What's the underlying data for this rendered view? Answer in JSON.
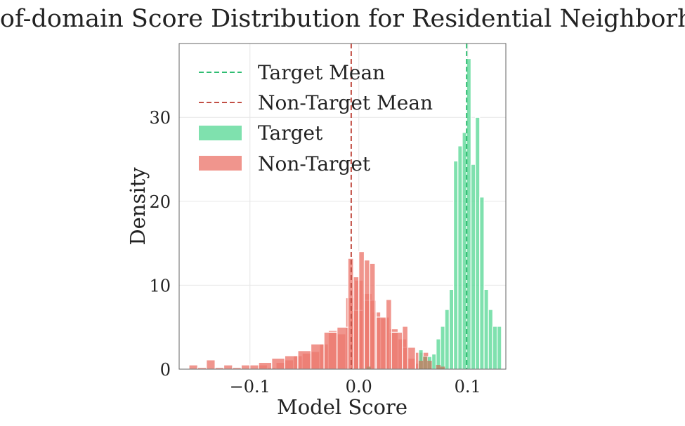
{
  "chart_data": {
    "type": "histogram",
    "title": "Out-of-domain Score Distribution for Residential Neighborhood",
    "xlabel": "Model Score",
    "ylabel": "Density",
    "xlim": [
      -0.165,
      0.135
    ],
    "ylim": [
      0,
      38.8
    ],
    "xticks": [
      -0.1,
      0.0,
      0.1
    ],
    "xtick_labels": [
      "−0.1",
      "0.0",
      "0.1"
    ],
    "yticks": [
      0,
      10,
      20,
      30
    ],
    "ytick_labels": [
      "0",
      "10",
      "20",
      "30"
    ],
    "grid": true,
    "legend": {
      "position": "top-left",
      "entries": [
        "Target Mean",
        "Non-Target Mean",
        "Target",
        "Non-Target"
      ]
    },
    "colors": {
      "target": "#5fd99a",
      "non_target": "#ec7b70",
      "target_mean": "#2fbd72",
      "non_target_mean": "#c24f45"
    },
    "series": [
      {
        "name": "Non-Target",
        "bin_width": 0.008,
        "bins": [
          {
            "x0": -0.156,
            "value": 0.5
          },
          {
            "x0": -0.148,
            "value": 0.2
          },
          {
            "x0": -0.14,
            "value": 1.1
          },
          {
            "x0": -0.132,
            "value": 0.2
          },
          {
            "x0": -0.124,
            "value": 0.5
          },
          {
            "x0": -0.116,
            "value": 0.2
          },
          {
            "x0": -0.108,
            "value": 0.5
          },
          {
            "x0": -0.1,
            "value": 0.5
          },
          {
            "x0": -0.092,
            "value": 0.5
          },
          {
            "x0": -0.084,
            "value": 0.2
          },
          {
            "x0": -0.076,
            "value": 0.8
          },
          {
            "x0": -0.068,
            "value": 1.1
          },
          {
            "x0": -0.06,
            "value": 1.6
          },
          {
            "x0": -0.052,
            "value": 1.9
          },
          {
            "x0": -0.044,
            "value": 2.1
          },
          {
            "x0": -0.036,
            "value": 3.0
          },
          {
            "x0": -0.028,
            "value": 4.6
          },
          {
            "x0": -0.02,
            "value": 4.2
          },
          {
            "x0": -0.012,
            "value": 8.5
          },
          {
            "x0": -0.004,
            "value": 10.6
          },
          {
            "x0": 0.004,
            "value": 9.0
          },
          {
            "x0": 0.012,
            "value": 6.8
          },
          {
            "x0": 0.02,
            "value": 6.1
          },
          {
            "x0": 0.028,
            "value": 4.8
          },
          {
            "x0": 0.036,
            "value": 3.6
          },
          {
            "x0": 0.044,
            "value": 1.3
          },
          {
            "x0": 0.052,
            "value": 0.7
          },
          {
            "x0": 0.06,
            "value": 0.2
          }
        ]
      },
      {
        "name": "Non-Target",
        "bin_width": 0.012,
        "bins": [
          {
            "x0": -0.092,
            "value": 0.8
          },
          {
            "x0": -0.08,
            "value": 1.3
          },
          {
            "x0": -0.068,
            "value": 1.6
          },
          {
            "x0": -0.056,
            "value": 2.2
          },
          {
            "x0": -0.044,
            "value": 3.0
          },
          {
            "x0": -0.032,
            "value": 4.4
          },
          {
            "x0": -0.02,
            "value": 5.0
          },
          {
            "x0": -0.008,
            "value": 7.0
          },
          {
            "x0": 0.004,
            "value": 8.2
          },
          {
            "x0": 0.016,
            "value": 6.2
          },
          {
            "x0": 0.028,
            "value": 4.4
          },
          {
            "x0": 0.04,
            "value": 2.6
          },
          {
            "x0": 0.052,
            "value": 2.0
          }
        ]
      },
      {
        "name": "Non-Target",
        "bin_width": 0.005,
        "bins": [
          {
            "x0": -0.01,
            "value": 13.2
          },
          {
            "x0": -0.005,
            "value": 11.0
          },
          {
            "x0": 0.0,
            "value": 14.0
          },
          {
            "x0": 0.005,
            "value": 13.0
          },
          {
            "x0": 0.01,
            "value": 12.6
          },
          {
            "x0": 0.025,
            "value": 8.3
          },
          {
            "x0": 0.04,
            "value": 5.1
          }
        ]
      },
      {
        "name": "Target",
        "bin_width": 0.004,
        "bins": [
          {
            "x0": 0.055,
            "value": 2.3
          },
          {
            "x0": 0.059,
            "value": 1.5
          },
          {
            "x0": 0.063,
            "value": 1.5
          },
          {
            "x0": 0.067,
            "value": 1.8
          },
          {
            "x0": 0.071,
            "value": 3.6
          },
          {
            "x0": 0.075,
            "value": 5.1
          },
          {
            "x0": 0.079,
            "value": 7.1
          },
          {
            "x0": 0.083,
            "value": 9.5
          },
          {
            "x0": 0.087,
            "value": 24.8
          },
          {
            "x0": 0.091,
            "value": 26.6
          },
          {
            "x0": 0.095,
            "value": 28.2
          },
          {
            "x0": 0.099,
            "value": 37.0
          },
          {
            "x0": 0.103,
            "value": 24.4
          },
          {
            "x0": 0.107,
            "value": 30.0
          },
          {
            "x0": 0.111,
            "value": 20.5
          },
          {
            "x0": 0.115,
            "value": 9.5
          },
          {
            "x0": 0.119,
            "value": 7.1
          },
          {
            "x0": 0.123,
            "value": 5.1
          },
          {
            "x0": 0.127,
            "value": 5.1
          }
        ]
      }
    ],
    "overlap_bins": [
      {
        "x0": 0.007,
        "value": 0.3
      },
      {
        "x0": 0.055,
        "value": 1.0
      },
      {
        "x0": 0.059,
        "value": 1.5
      },
      {
        "x0": 0.063,
        "value": 1.0
      },
      {
        "x0": 0.071,
        "value": 0.5
      },
      {
        "x0": 0.075,
        "value": 0.3
      }
    ],
    "mean_lines": [
      {
        "name": "Target Mean",
        "x": 0.099
      },
      {
        "name": "Non-Target Mean",
        "x": -0.007
      }
    ]
  }
}
